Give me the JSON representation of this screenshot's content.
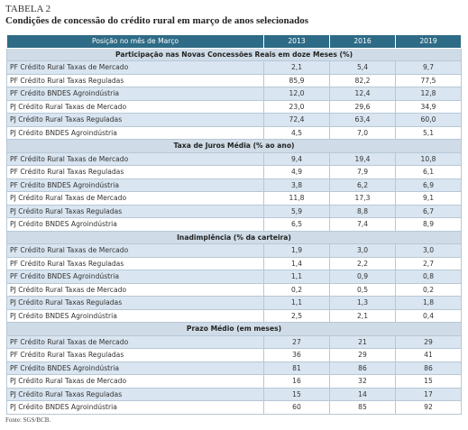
{
  "header": {
    "label": "TABELA 2",
    "title": "Condições de concessão do crédito rural em março de anos selecionados"
  },
  "table": {
    "columns": [
      "Posição no mês de Março",
      "2013",
      "2016",
      "2019"
    ],
    "sections": [
      {
        "title": "Participação nas Novas Concessões Reais em doze Meses (%)",
        "rows": [
          [
            "PF Crédito Rural Taxas de Mercado",
            "2,1",
            "5,4",
            "9,7"
          ],
          [
            "PF Crédito Rural Taxas Reguladas",
            "85,9",
            "82,2",
            "77,5"
          ],
          [
            "PF Crédito BNDES Agroindústria",
            "12,0",
            "12,4",
            "12,8"
          ],
          [
            "PJ Crédito Rural Taxas de Mercado",
            "23,0",
            "29,6",
            "34,9"
          ],
          [
            "PJ Crédito Rural Taxas Reguladas",
            "72,4",
            "63,4",
            "60,0"
          ],
          [
            "PJ Crédito BNDES Agroindústria",
            "4,5",
            "7,0",
            "5,1"
          ]
        ]
      },
      {
        "title": "Taxa de Juros Média (% ao ano)",
        "rows": [
          [
            "PF Crédito Rural Taxas de Mercado",
            "9,4",
            "19,4",
            "10,8"
          ],
          [
            "PF Crédito Rural Taxas Reguladas",
            "4,9",
            "7,9",
            "6,1"
          ],
          [
            "PF Crédito BNDES Agroindústria",
            "3,8",
            "6,2",
            "6,9"
          ],
          [
            "PJ Crédito Rural Taxas de Mercado",
            "11,8",
            "17,3",
            "9,1"
          ],
          [
            "PJ Crédito Rural Taxas Reguladas",
            "5,9",
            "8,8",
            "6,7"
          ],
          [
            "PJ Crédito BNDES Agroindústria",
            "6,5",
            "7,4",
            "8,9"
          ]
        ]
      },
      {
        "title": "Inadimplência (% da carteira)",
        "rows": [
          [
            "PF Crédito Rural Taxas de Mercado",
            "1,9",
            "3,0",
            "3,0"
          ],
          [
            "PF Crédito Rural Taxas Reguladas",
            "1,4",
            "2,2",
            "2,7"
          ],
          [
            "PF Crédito BNDES Agroindústria",
            "1,1",
            "0,9",
            "0,8"
          ],
          [
            "PJ Crédito Rural Taxas de Mercado",
            "0,2",
            "0,5",
            "0,2"
          ],
          [
            "PJ Crédito Rural Taxas Reguladas",
            "1,1",
            "1,3",
            "1,8"
          ],
          [
            "PJ Crédito BNDES Agroindústria",
            "2,5",
            "2,1",
            "0,4"
          ]
        ]
      },
      {
        "title": "Prazo Médio (em meses)",
        "rows": [
          [
            "PF Crédito Rural Taxas de Mercado",
            "27",
            "21",
            "29"
          ],
          [
            "PF Crédito Rural Taxas Reguladas",
            "36",
            "29",
            "41"
          ],
          [
            "PF Crédito BNDES Agroindústria",
            "81",
            "86",
            "86"
          ],
          [
            "PJ Crédito Rural Taxas de Mercado",
            "16",
            "32",
            "15"
          ],
          [
            "PJ Crédito Rural Taxas Reguladas",
            "15",
            "14",
            "17"
          ],
          [
            "PJ Crédito BNDES Agroindústria",
            "60",
            "85",
            "92"
          ]
        ]
      }
    ]
  },
  "footer": {
    "source": "Fonte: SGS/BCB."
  }
}
